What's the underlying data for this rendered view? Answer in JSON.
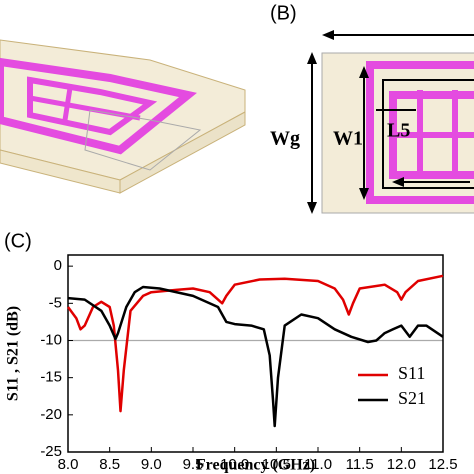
{
  "figure": {
    "panel_b_label": "(B)",
    "panel_c_label": "(C)",
    "dim_wg": "Wg",
    "dim_w1": "W1",
    "dim_l5": "L5"
  },
  "chart_data": {
    "type": "line",
    "x_label": "Frequency (GHz)",
    "y_label": "S11 , S21 (dB)",
    "xlim": [
      8,
      12.5
    ],
    "xticks": [
      {
        "value": 8,
        "label": "8.0"
      },
      {
        "value": 8.5,
        "label": "8.5"
      },
      {
        "value": 9,
        "label": "9.0"
      },
      {
        "value": 9.5,
        "label": "9.5"
      },
      {
        "value": 10,
        "label": "10.0"
      },
      {
        "value": 10.5,
        "label": "10.5"
      },
      {
        "value": 11,
        "label": "11.0"
      },
      {
        "value": 11.5,
        "label": "11.5"
      },
      {
        "value": 12,
        "label": "12.0"
      },
      {
        "value": 12.5,
        "label": "12.5"
      }
    ],
    "ylim": [
      -25,
      1.5
    ],
    "yticks": [
      0,
      -5,
      -10,
      -15,
      -20,
      -25
    ],
    "reference_line": -10,
    "reference_color": "#aaaaaa",
    "legend": "lower right",
    "series": [
      {
        "name": "S11",
        "color": "#e00000",
        "x": [
          8.0,
          8.1,
          8.15,
          8.2,
          8.3,
          8.4,
          8.5,
          8.55,
          8.6,
          8.63,
          8.67,
          8.75,
          8.9,
          9.0,
          9.3,
          9.5,
          9.7,
          9.8,
          9.85,
          9.9,
          10.0,
          10.3,
          10.6,
          11.0,
          11.2,
          11.3,
          11.37,
          11.42,
          11.5,
          11.8,
          11.95,
          12.0,
          12.05,
          12.2,
          12.5
        ],
        "values": [
          -5.5,
          -7,
          -8.5,
          -8,
          -5.5,
          -4.8,
          -5.5,
          -8,
          -14,
          -19.5,
          -14,
          -6,
          -4,
          -3.5,
          -3.2,
          -3,
          -3.5,
          -4.5,
          -5,
          -4,
          -2.5,
          -1.8,
          -1.7,
          -2,
          -3,
          -4.5,
          -6.5,
          -5,
          -3,
          -2.5,
          -3.5,
          -4.5,
          -3.5,
          -2,
          -1.3
        ]
      },
      {
        "name": "S21",
        "color": "#000000",
        "x": [
          8.0,
          8.2,
          8.4,
          8.5,
          8.57,
          8.6,
          8.7,
          8.8,
          8.9,
          9.1,
          9.5,
          9.8,
          9.9,
          10.0,
          10.2,
          10.35,
          10.42,
          10.46,
          10.48,
          10.52,
          10.6,
          10.8,
          11.0,
          11.2,
          11.4,
          11.6,
          11.7,
          11.8,
          11.9,
          12.0,
          12.1,
          12.2,
          12.3,
          12.5
        ],
        "values": [
          -4.3,
          -4.5,
          -6,
          -8,
          -9.8,
          -9,
          -5.5,
          -3.5,
          -2.8,
          -3,
          -4,
          -5.5,
          -7.5,
          -7.8,
          -8,
          -8.5,
          -12,
          -18,
          -21.5,
          -15,
          -8,
          -6.5,
          -7,
          -8.5,
          -9.5,
          -10.2,
          -10,
          -9,
          -8.5,
          -8,
          -9.5,
          -8,
          -8,
          -9.5
        ]
      }
    ]
  }
}
